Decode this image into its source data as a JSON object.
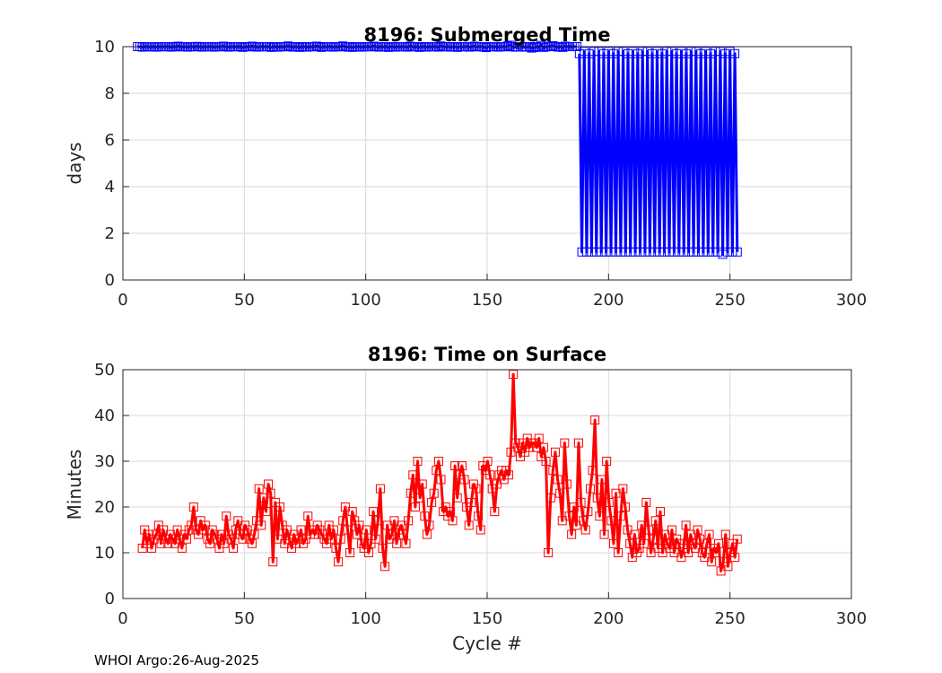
{
  "footer": "WHOI Argo:26-Aug-2025",
  "colors": {
    "submerged": "#0000ff",
    "surface": "#ff0000",
    "grid": "#d9d9d9",
    "axis": "#262626"
  },
  "chart_data": [
    {
      "type": "line",
      "title": "8196: Submerged Time",
      "xlabel": "",
      "ylabel": "days",
      "xlim": [
        0,
        300
      ],
      "ylim": [
        0,
        10
      ],
      "xticks": [
        0,
        50,
        100,
        150,
        200,
        250,
        300
      ],
      "yticks": [
        0,
        2,
        4,
        6,
        8,
        10
      ],
      "grid": true,
      "marker": "square",
      "series": [
        {
          "segments": [
            {
              "x_start": 6,
              "x_end": 187,
              "values": [
                10.0,
                10.0,
                9.98,
                10.0,
                10.0,
                9.99,
                9.99,
                10.0,
                9.98,
                10.0,
                9.99,
                10.0,
                10.0,
                10.0,
                9.98,
                10.0,
                9.99,
                10.02,
                10.0,
                9.99,
                10.0,
                9.98,
                10.0,
                10.0,
                9.99,
                10.01,
                10.0,
                9.98,
                10.0,
                9.99,
                10.0,
                10.0,
                9.98,
                10.0,
                9.99,
                10.0,
                10.02,
                10.0,
                9.98,
                10.0,
                10.0,
                9.99,
                10.0,
                10.0,
                9.97,
                10.0,
                9.99,
                10.0,
                10.02,
                10.0,
                9.98,
                9.99,
                10.0,
                10.0,
                9.99,
                10.0,
                9.97,
                10.0,
                10.0,
                9.98,
                10.0,
                9.99,
                10.0,
                10.03,
                10.0,
                9.98,
                10.0,
                9.99,
                9.97,
                10.0,
                10.0,
                9.98,
                10.0,
                9.99,
                10.0,
                10.02,
                10.0,
                9.97,
                10.0,
                9.99,
                10.0,
                10.0,
                9.98,
                10.0,
                9.99,
                10.0,
                10.03,
                10.0,
                9.98,
                10.0,
                9.97,
                9.99,
                10.0,
                10.0,
                9.98,
                10.0,
                10.0,
                9.99,
                10.0,
                10.02,
                10.0,
                9.98,
                10.0,
                9.99,
                10.0,
                9.97,
                10.0,
                10.0,
                9.98,
                10.0,
                9.99,
                10.0,
                10.0,
                9.98,
                10.02,
                10.0,
                9.99,
                10.0,
                9.97,
                10.0,
                10.0,
                9.98,
                10.0,
                9.99,
                10.0,
                10.0,
                9.98,
                10.03,
                10.0,
                9.99,
                10.0,
                9.98,
                10.0,
                10.0,
                9.97,
                10.0,
                9.99,
                10.0,
                10.0,
                9.98,
                10.0,
                10.02,
                9.99,
                10.0,
                10.0,
                9.98,
                9.96,
                10.0,
                10.0,
                9.99,
                10.0,
                9.98,
                10.0,
                10.0,
                9.99,
                10.03,
                10.06,
                10.0,
                9.98,
                9.99,
                10.1,
                10.0,
                9.98,
                9.99,
                10.0,
                9.94,
                9.96,
                10.0,
                9.98,
                10.05,
                9.97,
                9.99,
                10.0,
                10.02,
                10.04,
                10.0,
                9.98,
                10.0,
                9.97,
                10.02,
                10.0,
                10.0,
                10.0,
                10.0,
                10.0
              ]
            },
            {
              "x_start": 188,
              "x_end": 253,
              "values": [
                9.7,
                1.2,
                9.8,
                1.2,
                9.7,
                1.2,
                9.8,
                1.2,
                9.8,
                1.2,
                9.7,
                1.2,
                9.8,
                1.2,
                9.7,
                1.2,
                9.8,
                1.2,
                9.8,
                1.2,
                9.7,
                1.2,
                9.8,
                1.2,
                9.7,
                1.2,
                9.8,
                1.2,
                9.8,
                1.2,
                9.7,
                1.2,
                9.8,
                1.2,
                9.7,
                1.2,
                9.8,
                1.2,
                9.8,
                1.2,
                9.7,
                1.2,
                9.8,
                1.2,
                9.7,
                1.2,
                9.8,
                1.2,
                9.8,
                1.2,
                9.7,
                1.2,
                9.8,
                1.2,
                9.7,
                1.2,
                9.8,
                1.2,
                9.8,
                1.1,
                9.7,
                1.2,
                9.8,
                1.2,
                9.7,
                1.2
              ]
            }
          ]
        }
      ]
    },
    {
      "type": "line",
      "title": "8196: Time on Surface",
      "xlabel": "Cycle #",
      "ylabel": "Minutes",
      "xlim": [
        0,
        300
      ],
      "ylim": [
        0,
        50
      ],
      "xticks": [
        0,
        50,
        100,
        150,
        200,
        250,
        300
      ],
      "yticks": [
        0,
        10,
        20,
        30,
        40,
        50
      ],
      "grid": true,
      "marker": "square",
      "series": [
        {
          "x_start": 8,
          "x_end": 253,
          "values": [
            11,
            15,
            12,
            14,
            11,
            13,
            14,
            16,
            12,
            15,
            13,
            12,
            14,
            13,
            12,
            15,
            13,
            11,
            14,
            13,
            15,
            16,
            20,
            15,
            14,
            17,
            15,
            16,
            13,
            12,
            15,
            14,
            13,
            11,
            14,
            12,
            18,
            14,
            13,
            11,
            15,
            17,
            14,
            13,
            16,
            15,
            13,
            12,
            14,
            17,
            24,
            16,
            22,
            19,
            25,
            23,
            8,
            21,
            13,
            20,
            16,
            12,
            15,
            13,
            11,
            14,
            12,
            13,
            15,
            12,
            13,
            18,
            14,
            15,
            14,
            16,
            15,
            14,
            13,
            12,
            16,
            13,
            15,
            11,
            8,
            13,
            17,
            20,
            15,
            10,
            19,
            17,
            14,
            16,
            12,
            11,
            15,
            10,
            12,
            19,
            13,
            17,
            24,
            11,
            7,
            16,
            13,
            14,
            17,
            12,
            15,
            16,
            14,
            12,
            17,
            23,
            27,
            20,
            30,
            22,
            25,
            18,
            14,
            16,
            21,
            23,
            28,
            30,
            26,
            19,
            20,
            18,
            19,
            17,
            29,
            22,
            27,
            29,
            26,
            20,
            16,
            21,
            25,
            24,
            18,
            15,
            29,
            28,
            30,
            27,
            24,
            19,
            25,
            27,
            28,
            26,
            28,
            27,
            32,
            49,
            34,
            33,
            31,
            34,
            32,
            35,
            33,
            34,
            34,
            33,
            35,
            31,
            33,
            30,
            10,
            22,
            28,
            32,
            26,
            23,
            17,
            34,
            25,
            18,
            14,
            20,
            16,
            34,
            21,
            17,
            15,
            19,
            24,
            28,
            39,
            22,
            18,
            26,
            14,
            30,
            21,
            17,
            12,
            23,
            10,
            18,
            24,
            20,
            15,
            12,
            9,
            14,
            10,
            11,
            16,
            12,
            21,
            15,
            10,
            13,
            17,
            11,
            19,
            10,
            14,
            12,
            11,
            15,
            10,
            13,
            12,
            9,
            11,
            16,
            10,
            14,
            12,
            11,
            15,
            13,
            10,
            9,
            12,
            14,
            8,
            11,
            10,
            12,
            6,
            8,
            14,
            7,
            10,
            12,
            9,
            13
          ]
        }
      ]
    }
  ]
}
